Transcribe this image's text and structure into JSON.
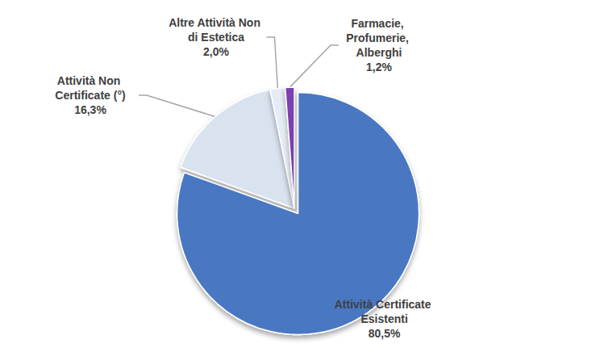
{
  "chart_data": {
    "type": "pie",
    "categories": [
      "Attività Certificate Esistenti",
      "Attività Non Certificate (°)",
      "Altre Attività Non di Estetica",
      "Farmacie, Profumerie, Alberghi"
    ],
    "values": [
      80.5,
      16.3,
      2.0,
      1.2
    ],
    "value_labels": [
      "80,5%",
      "16,3%",
      "2,0%",
      "1,2%"
    ],
    "colors": [
      "#4a77c2",
      "#d9e2ef",
      "#e6ecf5",
      "#7b3fb0"
    ],
    "data_labels": true
  }
}
